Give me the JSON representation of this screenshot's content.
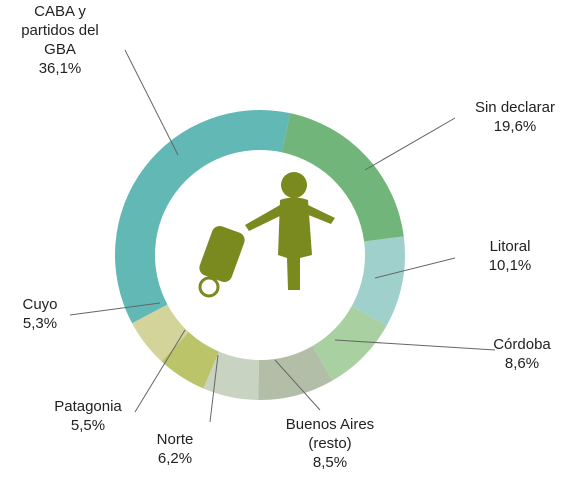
{
  "chart_data": {
    "type": "donut",
    "categories": [
      "Sin declarar",
      "Litoral",
      "Córdoba",
      "Buenos Aires (resto)",
      "Norte",
      "Patagonia",
      "Cuyo",
      "CABA y partidos del GBA"
    ],
    "values": [
      19.6,
      10.1,
      8.6,
      8.5,
      6.2,
      5.5,
      5.3,
      36.1
    ],
    "value_labels": [
      "19,6%",
      "10,1%",
      "8,6%",
      "8,5%",
      "6,2%",
      "5,5%",
      "5,3%",
      "36,1%"
    ],
    "colors": [
      "#72b57a",
      "#9fd0cc",
      "#a8d0a0",
      "#b3bea8",
      "#c9d3c2",
      "#bcc46a",
      "#d3d49a",
      "#62b8b5"
    ]
  }
}
